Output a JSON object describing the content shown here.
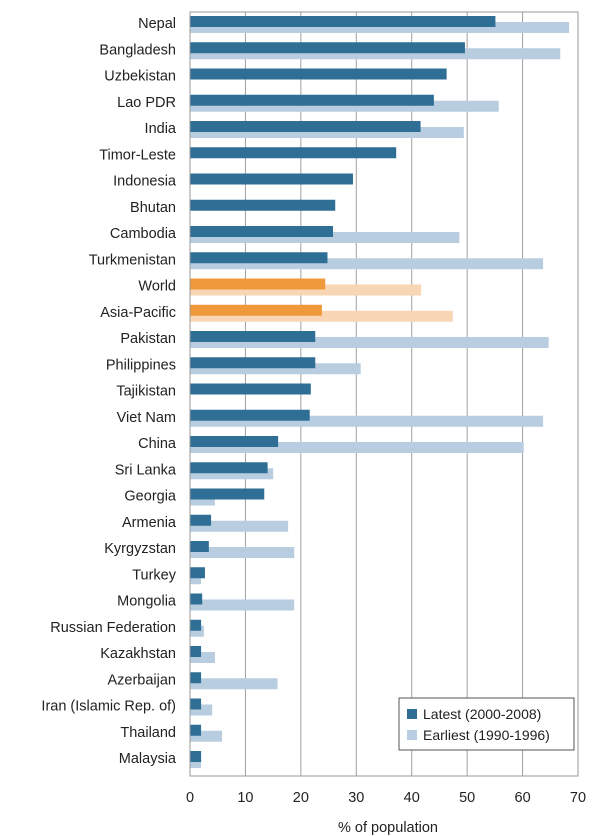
{
  "chart_data": {
    "type": "bar",
    "orientation": "horizontal",
    "xlabel": "% of population",
    "xlim": [
      0,
      70
    ],
    "xticks": [
      0,
      10,
      20,
      30,
      40,
      50,
      60,
      70
    ],
    "grid": "vertical",
    "legend_position": "bottom-right",
    "categories": [
      "Nepal",
      "Bangladesh",
      "Uzbekistan",
      "Lao PDR",
      "India",
      "Timor-Leste",
      "Indonesia",
      "Bhutan",
      "Cambodia",
      "Turkmenistan",
      "World",
      "Asia-Pacific",
      "Pakistan",
      "Philippines",
      "Tajikistan",
      "Viet Nam",
      "China",
      "Sri Lanka",
      "Georgia",
      "Armenia",
      "Kyrgyzstan",
      "Turkey",
      "Mongolia",
      "Russian Federation",
      "Kazakhstan",
      "Azerbaijan",
      "Iran (Islamic Rep. of)",
      "Thailand",
      "Malaysia"
    ],
    "highlighted_categories": [
      "World",
      "Asia-Pacific"
    ],
    "series": [
      {
        "name": "Latest (2000-2008)",
        "color": "#2f6f95",
        "highlight_color": "#f0993a",
        "values": [
          55.1,
          49.6,
          46.3,
          44.0,
          41.6,
          37.2,
          29.4,
          26.2,
          25.8,
          24.8,
          24.4,
          23.8,
          22.6,
          22.6,
          21.8,
          21.6,
          15.9,
          14.0,
          13.4,
          3.8,
          3.4,
          2.7,
          2.2,
          2.0,
          2.0,
          2.0,
          2.0,
          2.0,
          2.0
        ]
      },
      {
        "name": "Earliest (1990-1996)",
        "color": "#b8cde0",
        "highlight_color": "#f8d5b3",
        "values": [
          68.4,
          66.8,
          null,
          55.7,
          49.4,
          null,
          null,
          null,
          48.6,
          63.7,
          41.7,
          47.4,
          64.7,
          30.8,
          null,
          63.7,
          60.2,
          15.0,
          4.5,
          17.7,
          18.8,
          2.0,
          18.8,
          2.5,
          4.5,
          15.8,
          4.0,
          5.8,
          2.0
        ]
      }
    ]
  }
}
